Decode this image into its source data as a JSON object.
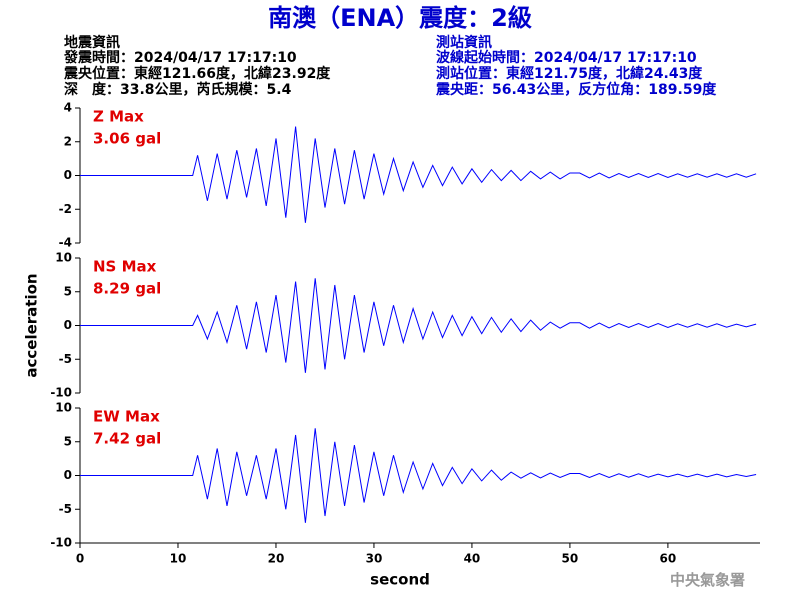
{
  "header": {
    "title": "南澳（ENA）震度：2級",
    "left_info": [
      "地震資訊",
      "發震時間：2024/04/17 17:17:10",
      "震央位置：東經121.66度，北緯23.92度",
      "深　度：33.8公里，芮氏規模：5.4"
    ],
    "right_info": [
      "測站資訊",
      "波線起始時間：2024/04/17 17:17:10",
      "測站位置：東經121.75度，北緯24.43度",
      "震央距：56.43公里，反方位角：189.59度"
    ],
    "footer": "中央氣象署"
  },
  "chart_data": [
    {
      "type": "line",
      "annotations": [
        "Z Max",
        "3.06 gal"
      ],
      "color": "#0000ff",
      "ylim": [
        -4,
        4
      ],
      "yticks": [
        -4,
        -2,
        0,
        2,
        4
      ],
      "x": [
        0,
        11.5,
        12,
        13,
        14,
        15,
        16,
        17,
        18,
        19,
        20,
        21,
        22,
        23,
        24,
        25,
        26,
        27,
        28,
        29,
        30,
        31,
        32,
        33,
        34,
        35,
        36,
        37,
        38,
        39,
        40,
        41,
        42,
        43,
        44,
        45,
        46,
        47,
        48,
        49,
        50,
        51,
        52,
        53,
        54,
        55,
        56,
        57,
        58,
        59,
        60,
        61,
        62,
        63,
        64,
        65,
        66,
        67,
        68,
        69
      ],
      "values": [
        0,
        0,
        1.2,
        -1.5,
        1.3,
        -1.4,
        1.5,
        -1.3,
        1.6,
        -1.8,
        2.2,
        -2.5,
        2.9,
        -2.8,
        2.2,
        -1.9,
        1.6,
        -1.7,
        1.5,
        -1.4,
        1.3,
        -1.1,
        1.0,
        -0.9,
        0.8,
        -0.7,
        0.6,
        -0.6,
        0.5,
        -0.5,
        0.4,
        -0.4,
        0.35,
        -0.3,
        0.3,
        -0.3,
        0.25,
        -0.2,
        0.2,
        -0.2,
        0.15,
        0.15,
        -0.15,
        0.15,
        -0.15,
        0.12,
        -0.12,
        0.12,
        -0.12,
        0.12,
        -0.12,
        0.1,
        -0.1,
        0.1,
        -0.1,
        0.1,
        -0.1,
        0.1,
        -0.1,
        0.1
      ]
    },
    {
      "type": "line",
      "annotations": [
        "NS Max",
        "8.29 gal"
      ],
      "color": "#0000ff",
      "ylabel": "acceleration",
      "ylim": [
        -10,
        10
      ],
      "yticks": [
        -10,
        -5,
        0,
        5,
        10
      ],
      "x": [
        0,
        11.5,
        12,
        13,
        14,
        15,
        16,
        17,
        18,
        19,
        20,
        21,
        22,
        23,
        24,
        25,
        26,
        27,
        28,
        29,
        30,
        31,
        32,
        33,
        34,
        35,
        36,
        37,
        38,
        39,
        40,
        41,
        42,
        43,
        44,
        45,
        46,
        47,
        48,
        49,
        50,
        51,
        52,
        53,
        54,
        55,
        56,
        57,
        58,
        59,
        60,
        61,
        62,
        63,
        64,
        65,
        66,
        67,
        68,
        69
      ],
      "values": [
        0,
        0,
        1.5,
        -2,
        2,
        -2.5,
        3,
        -3.5,
        3.5,
        -4,
        4.5,
        -5.5,
        6.5,
        -7,
        7,
        -6.5,
        6,
        -5,
        4.5,
        -4,
        3.5,
        -3,
        3,
        -2.5,
        2.5,
        -2,
        2,
        -1.8,
        1.5,
        -1.5,
        1.3,
        -1.2,
        1.2,
        -1,
        1,
        -0.9,
        0.8,
        -0.7,
        0.5,
        -0.4,
        0.4,
        0.4,
        -0.4,
        0.35,
        -0.35,
        0.3,
        -0.3,
        0.3,
        -0.3,
        0.3,
        -0.3,
        0.25,
        -0.25,
        0.25,
        -0.25,
        0.25,
        -0.25,
        0.2,
        -0.2,
        0.2
      ]
    },
    {
      "type": "line",
      "annotations": [
        "EW Max",
        "7.42 gal"
      ],
      "color": "#0000ff",
      "xlabel": "second",
      "ylim": [
        -10,
        10
      ],
      "yticks": [
        -10,
        -5,
        0,
        5,
        10
      ],
      "xlim": [
        0,
        69.4
      ],
      "xticks": [
        0,
        10,
        20,
        30,
        40,
        50,
        60
      ],
      "x": [
        0,
        11.5,
        12,
        13,
        14,
        15,
        16,
        17,
        18,
        19,
        20,
        21,
        22,
        23,
        24,
        25,
        26,
        27,
        28,
        29,
        30,
        31,
        32,
        33,
        34,
        35,
        36,
        37,
        38,
        39,
        40,
        41,
        42,
        43,
        44,
        45,
        46,
        47,
        48,
        49,
        50,
        51,
        52,
        53,
        54,
        55,
        56,
        57,
        58,
        59,
        60,
        61,
        62,
        63,
        64,
        65,
        66,
        67,
        68,
        69
      ],
      "values": [
        0,
        0,
        3,
        -3.5,
        4,
        -4.5,
        3.5,
        -3,
        3,
        -3.5,
        4,
        -5,
        6,
        -7,
        7,
        -6,
        5,
        -4.5,
        4.5,
        -4,
        3.5,
        -3,
        3,
        -2.5,
        2,
        -2,
        1.8,
        -1.5,
        1.2,
        -1.2,
        1,
        -0.8,
        0.8,
        -0.7,
        0.5,
        -0.4,
        0.4,
        -0.35,
        0.35,
        -0.3,
        0.3,
        0.3,
        -0.3,
        0.3,
        -0.3,
        0.25,
        -0.25,
        0.25,
        -0.25,
        0.2,
        -0.2,
        0.2,
        -0.2,
        0.2,
        -0.2,
        0.2,
        -0.2,
        0.15,
        -0.15,
        0.15
      ]
    }
  ]
}
